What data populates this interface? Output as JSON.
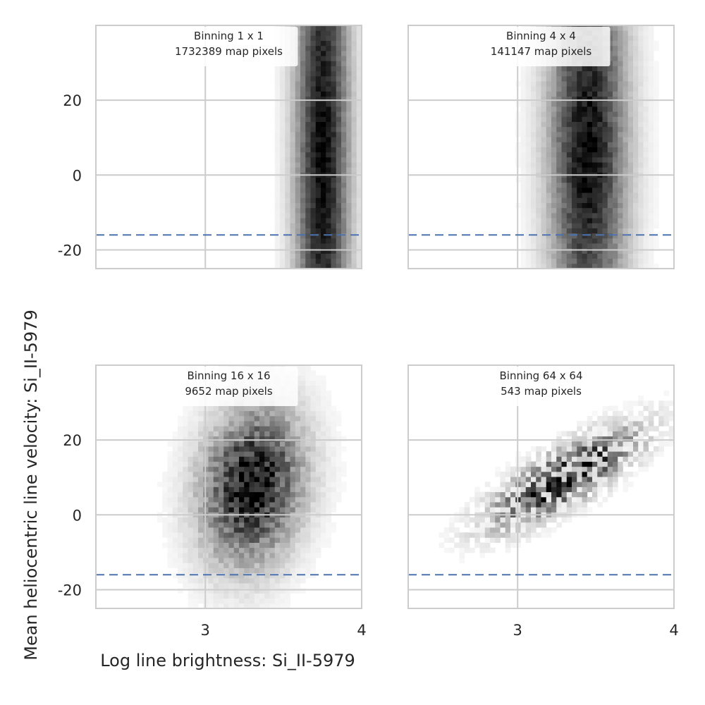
{
  "figure": {
    "xlabel": "Log line brightness: Si_II-5979",
    "ylabel": "Mean heliocentric line velocity: Si_II-5979"
  },
  "chart_data": {
    "type": "heatmap",
    "layout": "2x2 grid of 2D histograms, shared axes",
    "xlim": [
      2.3,
      4.0
    ],
    "ylim": [
      -25,
      40
    ],
    "xticks": [
      3,
      4
    ],
    "yticks": [
      -20,
      0,
      20
    ],
    "grid": true,
    "colormap": "white-to-black",
    "reference_line": {
      "axis": "y",
      "value": -16,
      "style": "dashed",
      "color": "#4c72b0"
    },
    "panels": [
      {
        "binning_label": "Binning 1 x 1",
        "pixels_label": "1732389 map pixels",
        "density_model": {
          "shape": "band",
          "x_center": 3.75,
          "x_sigma": 0.12,
          "y_center": 5,
          "y_sigma": 60,
          "slope": 0,
          "noise": 0.08
        }
      },
      {
        "binning_label": "Binning 4 x 4",
        "pixels_label": "141147 map pixels",
        "density_model": {
          "shape": "band",
          "x_center": 3.45,
          "x_sigma": 0.17,
          "y_center": 8,
          "y_sigma": 40,
          "slope": 0,
          "noise": 0.12
        }
      },
      {
        "binning_label": "Binning 16 x 16",
        "pixels_label": "9652 map pixels",
        "density_model": {
          "shape": "blob",
          "x_center": 3.3,
          "x_sigma": 0.22,
          "y_center": 8,
          "y_sigma": 14,
          "slope": 10,
          "noise": 0.28
        }
      },
      {
        "binning_label": "Binning 64 x 64",
        "pixels_label": "543 map pixels",
        "density_model": {
          "shape": "diagonal",
          "x_center": 3.3,
          "x_sigma": 0.3,
          "y_center": 10,
          "y_sigma": 5,
          "slope": 22,
          "noise": 0.45
        }
      }
    ]
  }
}
